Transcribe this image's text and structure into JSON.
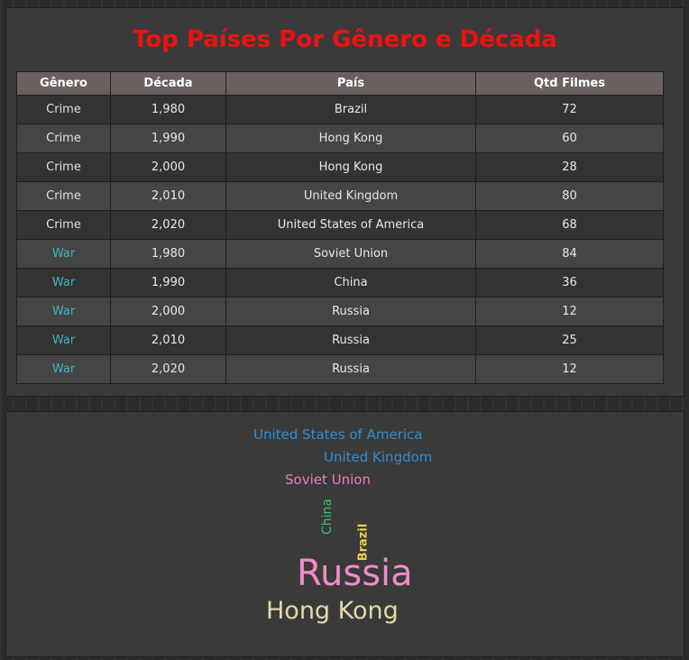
{
  "title": "Top Países Por Gênero e Década",
  "table": {
    "headers": [
      "Gênero",
      "Década",
      "País",
      "Qtd Filmes"
    ],
    "rows": [
      {
        "genero": "Crime",
        "decada": "1,980",
        "pais": "Brazil",
        "qtd": "72"
      },
      {
        "genero": "Crime",
        "decada": "1,990",
        "pais": "Hong Kong",
        "qtd": "60"
      },
      {
        "genero": "Crime",
        "decada": "2,000",
        "pais": "Hong Kong",
        "qtd": "28"
      },
      {
        "genero": "Crime",
        "decada": "2,010",
        "pais": "United Kingdom",
        "qtd": "80"
      },
      {
        "genero": "Crime",
        "decada": "2,020",
        "pais": "United States of America",
        "qtd": "68"
      },
      {
        "genero": "War",
        "decada": "1,980",
        "pais": "Soviet Union",
        "qtd": "84"
      },
      {
        "genero": "War",
        "decada": "1,990",
        "pais": "China",
        "qtd": "36"
      },
      {
        "genero": "War",
        "decada": "2,000",
        "pais": "Russia",
        "qtd": "12"
      },
      {
        "genero": "War",
        "decada": "2,010",
        "pais": "Russia",
        "qtd": "25"
      },
      {
        "genero": "War",
        "decada": "2,020",
        "pais": "Russia",
        "qtd": "12"
      }
    ]
  },
  "colors": {
    "title": "#ee1111",
    "war_genre": "#3fb6c0",
    "header_bg": "#6b6060"
  },
  "word_cloud": {
    "words": [
      {
        "text": "United States of America",
        "color": "#2f8fd6"
      },
      {
        "text": "United Kingdom",
        "color": "#2f8fd6"
      },
      {
        "text": "Soviet Union",
        "color": "#e97fc0"
      },
      {
        "text": "China",
        "color": "#3fbf6a"
      },
      {
        "text": "Brazil",
        "color": "#e8d24a"
      },
      {
        "text": "Russia",
        "color": "#f08cc8"
      },
      {
        "text": "Hong Kong",
        "color": "#e6d9a8"
      }
    ]
  }
}
